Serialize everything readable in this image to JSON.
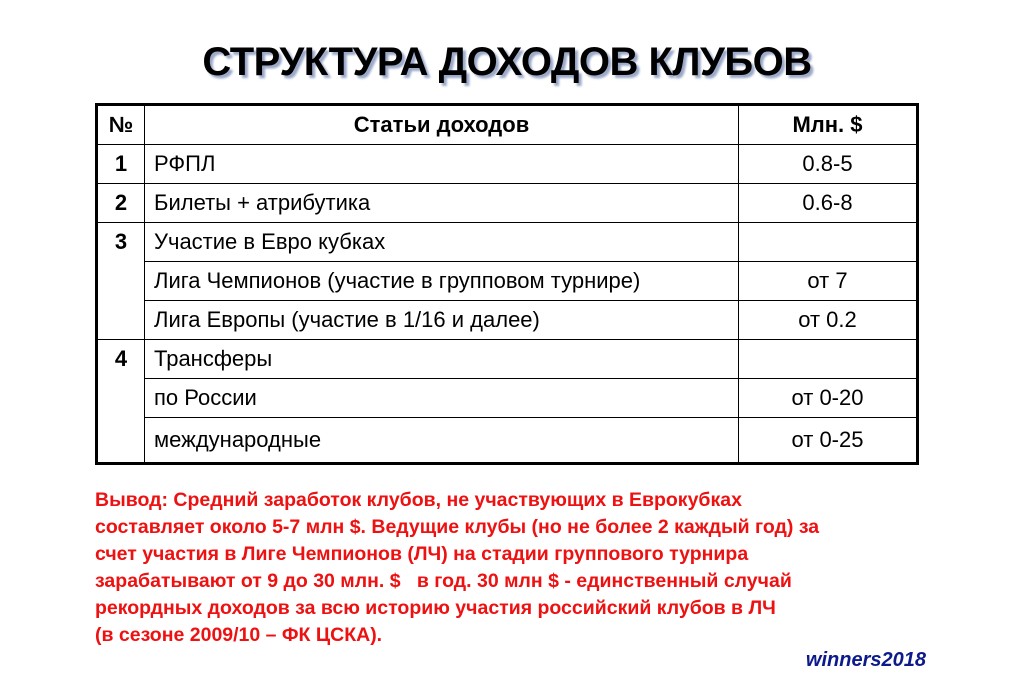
{
  "title": "СТРУКТУРА ДОХОДОВ КЛУБОВ",
  "table": {
    "headers": [
      "№",
      "Статьи доходов",
      "Млн. $"
    ],
    "rows": [
      {
        "num": "1",
        "item": "РФПЛ",
        "value": "0.8-5"
      },
      {
        "num": "2",
        "item": "Билеты + атрибутика",
        "value": "0.6-8"
      },
      {
        "num": "3",
        "item": "Участие в Евро кубках",
        "value": ""
      },
      {
        "num": "",
        "item": "Лига Чемпионов (участие в групповом турнире)",
        "value": "от 7"
      },
      {
        "num": "",
        "item": "Лига Европы (участие в 1/16 и далее)",
        "value": "от 0.2"
      },
      {
        "num": "4",
        "item": "Трансферы",
        "value": ""
      },
      {
        "num": "",
        "item": "по России",
        "value": "от 0-20"
      },
      {
        "num": "",
        "item": "международные",
        "value": "от 0-25"
      }
    ]
  },
  "conclusion": {
    "lines": [
      "Вывод: Средний заработок клубов, не участвующих в Еврокубках",
      "составляет около 5-7 млн $. Ведущие клубы (но не более 2 каждый год) за",
      "счет участия в Лиге Чемпионов (ЛЧ) на стадии группового турнира",
      "зарабатывают от 9 до 30 млн. $   в год. 30 млн $ - единственный случай",
      "рекордных доходов за всю историю участия российский клубов в ЛЧ",
      "(в сезоне 2009/10 – ФК ЦСКА)."
    ],
    "color": "#ee1111"
  },
  "signature": "winners2018"
}
